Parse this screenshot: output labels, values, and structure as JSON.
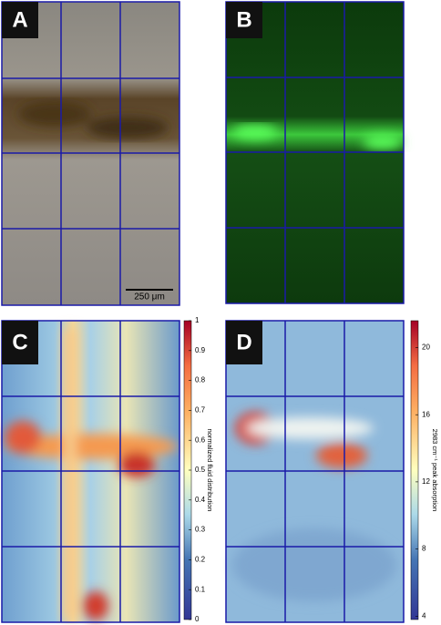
{
  "panels": [
    {
      "label": "A",
      "scale_bar": "250 μm"
    },
    {
      "label": "B"
    },
    {
      "label": "C",
      "colorbar": {
        "label": "normalized fluid distribution",
        "ylim": [
          0,
          1
        ],
        "yticks": [
          0,
          0.1,
          0.2,
          0.3,
          0.4,
          0.5,
          0.6,
          0.7,
          0.8,
          0.9,
          1
        ]
      }
    },
    {
      "label": "D",
      "colorbar": {
        "label": "2983 cm⁻¹ peak absorption",
        "ylim": [
          3.8,
          21.6
        ],
        "yticks": [
          4,
          8,
          12,
          16,
          20
        ]
      }
    }
  ]
}
